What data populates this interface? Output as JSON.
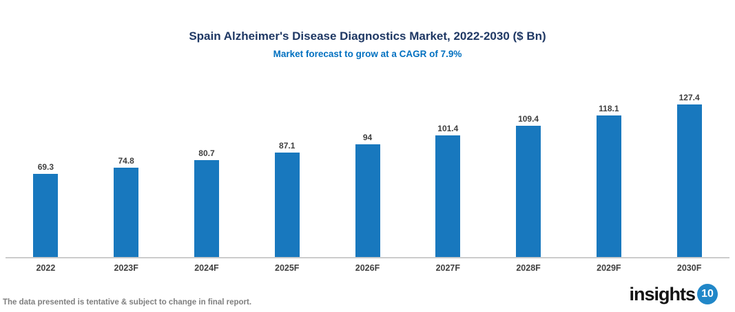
{
  "chart_data": {
    "type": "bar",
    "title": "Spain Alzheimer's Disease Diagnostics Market, 2022-2030 ($ Bn)",
    "subtitle": "Market forecast to grow at a CAGR of 7.9%",
    "categories": [
      "2022",
      "2023F",
      "2024F",
      "2025F",
      "2026F",
      "2027F",
      "2028F",
      "2029F",
      "2030F"
    ],
    "values": [
      69.3,
      74.8,
      80.7,
      87.1,
      94,
      101.4,
      109.4,
      118.1,
      127.4
    ],
    "value_labels": [
      "69.3",
      "74.8",
      "80.7",
      "87.1",
      "94",
      "101.4",
      "109.4",
      "118.1",
      "127.4"
    ],
    "xlabel": "",
    "ylabel": "",
    "ylim": [
      0,
      135
    ],
    "grid": false,
    "legend": "none",
    "bar_color": "#1878BE",
    "title_color": "#1F3864",
    "subtitle_color": "#0070C0",
    "label_color": "#3F3F3F",
    "axis_color": "#cccccc"
  },
  "footer": {
    "disclaimer": "The data presented is tentative & subject to change in final report.",
    "logo_text": "insights",
    "logo_badge": "10"
  }
}
